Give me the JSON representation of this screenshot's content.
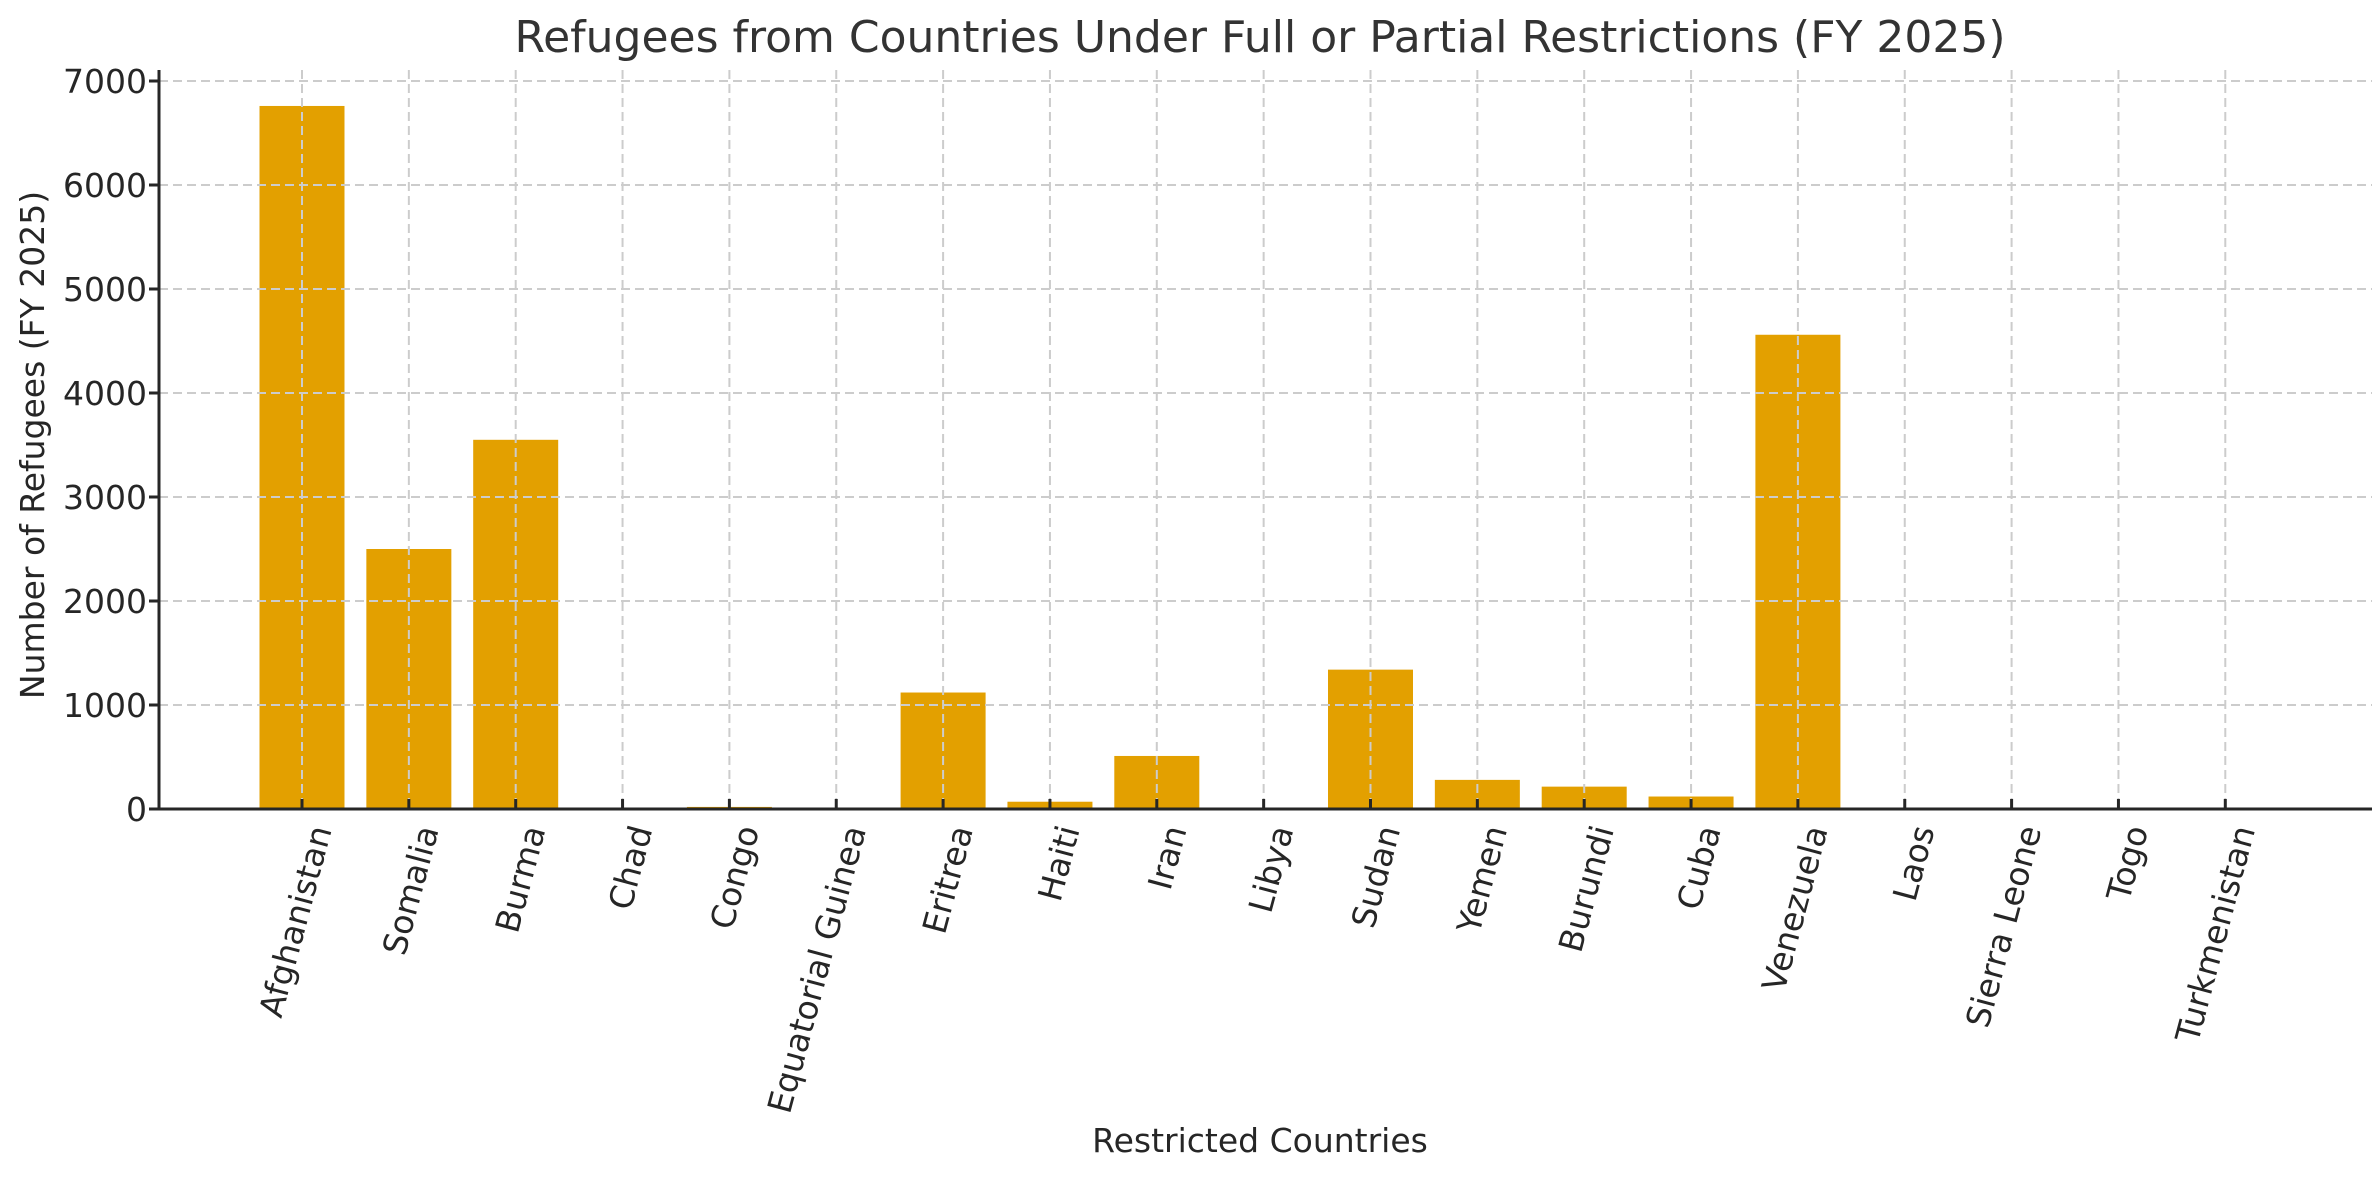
{
  "chart_data": {
    "type": "bar",
    "title": "Refugees from Countries Under Full or Partial Restrictions (FY 2025)",
    "xlabel": "Restricted Countries",
    "ylabel": "Number of Refugees (FY 2025)",
    "categories": [
      "Afghanistan",
      "Somalia",
      "Burma",
      "Chad",
      "Congo",
      "Equatorial Guinea",
      "Eritrea",
      "Haiti",
      "Iran",
      "Libya",
      "Sudan",
      "Yemen",
      "Burundi",
      "Cuba",
      "Venezuela",
      "Laos",
      "Sierra Leone",
      "Togo",
      "Turkmenistan"
    ],
    "values": [
      6760,
      2500,
      3550,
      0,
      20,
      0,
      1120,
      70,
      510,
      0,
      1340,
      280,
      215,
      120,
      4560,
      0,
      0,
      0,
      0
    ],
    "ylim": [
      0,
      7100
    ],
    "yticks": [
      0,
      1000,
      2000,
      3000,
      4000,
      5000,
      6000,
      7000
    ],
    "grid": true,
    "grid_style": "dashed",
    "legend": null,
    "bar_color": "#E3A000",
    "xtick_rotation": 75
  },
  "colors": {
    "bar": "#E3A000",
    "grid": "#cccccc",
    "axis": "#262626",
    "title": "#333333"
  }
}
